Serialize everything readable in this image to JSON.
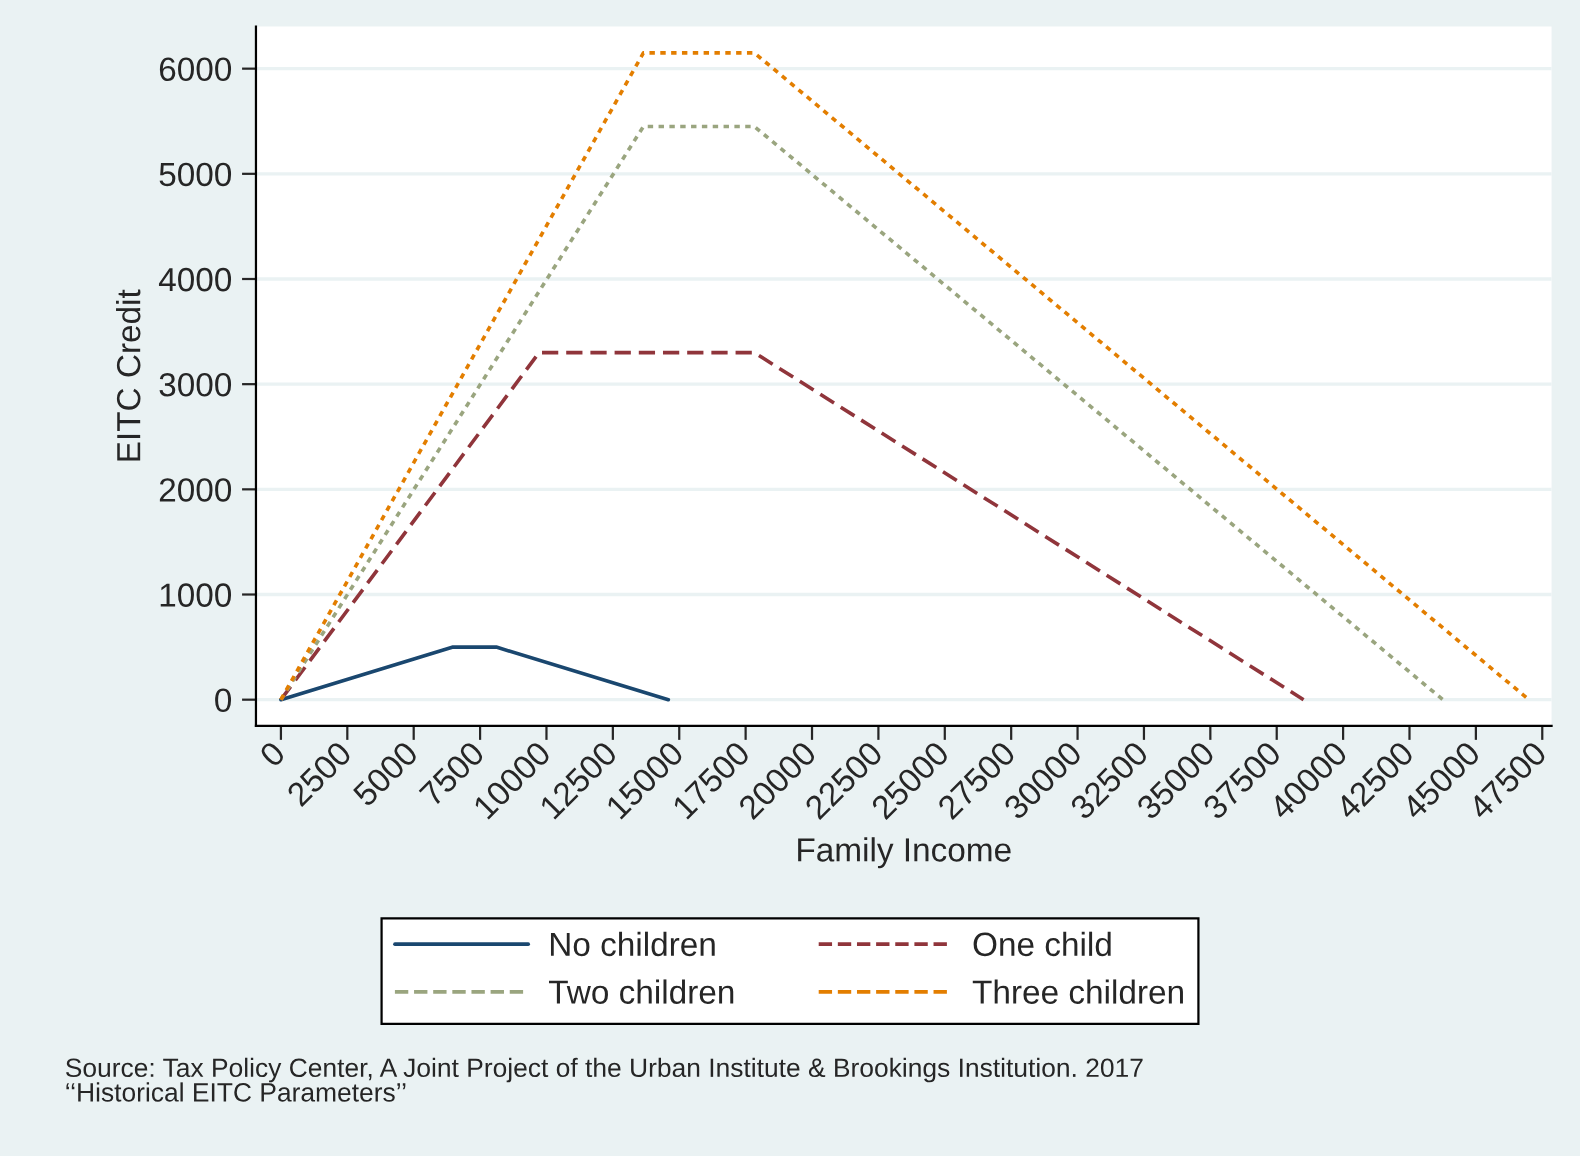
{
  "chart_data": {
    "type": "line",
    "xlabel": "Family Income",
    "ylabel": "EITC Credit",
    "xlim": [
      -940,
      47850
    ],
    "ylim": [
      -250,
      6400
    ],
    "xticks": [
      0,
      2500,
      5000,
      7500,
      10000,
      12500,
      15000,
      17500,
      20000,
      22500,
      25000,
      27500,
      30000,
      32500,
      35000,
      37500,
      40000,
      42500,
      45000,
      47500
    ],
    "yticks": [
      0,
      1000,
      2000,
      3000,
      4000,
      5000,
      6000
    ],
    "grid": "y",
    "legend": "bottom",
    "series": [
      {
        "name": "No children",
        "color": "#1a476f",
        "line_style": "solid",
        "x": [
          0,
          6480,
          8110,
          14590
        ],
        "values": [
          0,
          500,
          500,
          0
        ]
      },
      {
        "name": "One child",
        "color": "#90353b",
        "line_style": "dashed",
        "x": [
          0,
          9720,
          17830,
          38511
        ],
        "values": [
          0,
          3300,
          3300,
          0
        ]
      },
      {
        "name": "Two children",
        "color": "#9aa57f",
        "line_style": "dotted",
        "x": [
          0,
          13650,
          17830,
          43756
        ],
        "values": [
          0,
          5450,
          5450,
          0
        ]
      },
      {
        "name": "Three children",
        "color": "#e37e00",
        "line_style": "dotted",
        "x": [
          0,
          13650,
          17830,
          46997
        ],
        "values": [
          0,
          6150,
          6150,
          0
        ]
      }
    ],
    "annotations": [
      "Source: Tax Policy Center, A Joint Project of the Urban Institute & Brookings Institution. 2017\n‘‘Historical EITC Parameters’’"
    ]
  }
}
